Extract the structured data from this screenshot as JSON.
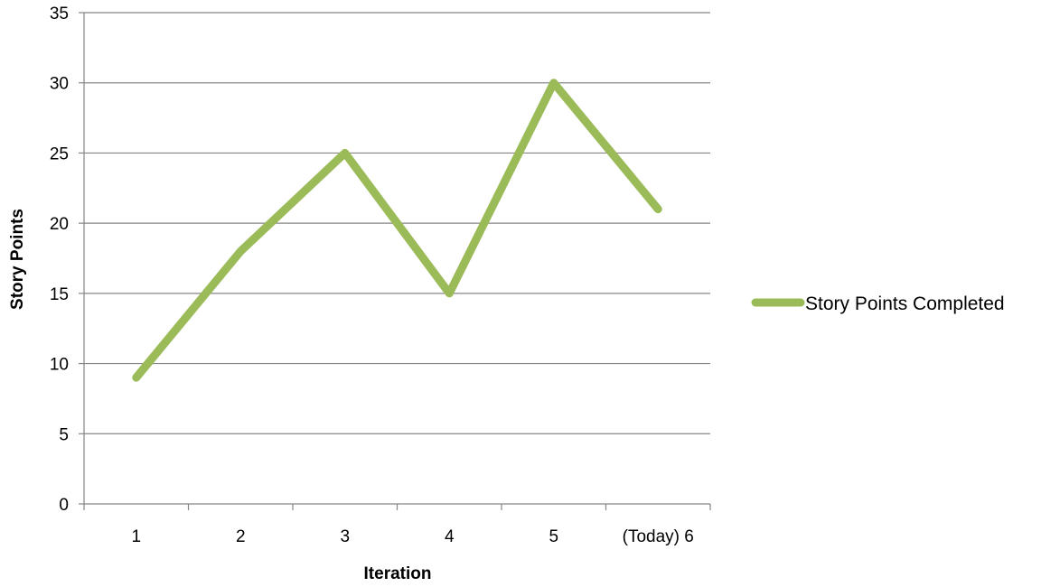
{
  "chart_data": {
    "type": "line",
    "categories": [
      "1",
      "2",
      "3",
      "4",
      "5",
      "(Today) 6"
    ],
    "series": [
      {
        "name": "Story Points Completed",
        "values": [
          9,
          18,
          25,
          15,
          30,
          21
        ],
        "color": "#9BBB59"
      }
    ],
    "title": "",
    "xlabel": "Iteration",
    "ylabel": "Story Points",
    "ylim": [
      0,
      35
    ],
    "yticks": [
      0,
      5,
      10,
      15,
      20,
      25,
      30,
      35
    ],
    "grid": true,
    "legend_position": "right"
  }
}
